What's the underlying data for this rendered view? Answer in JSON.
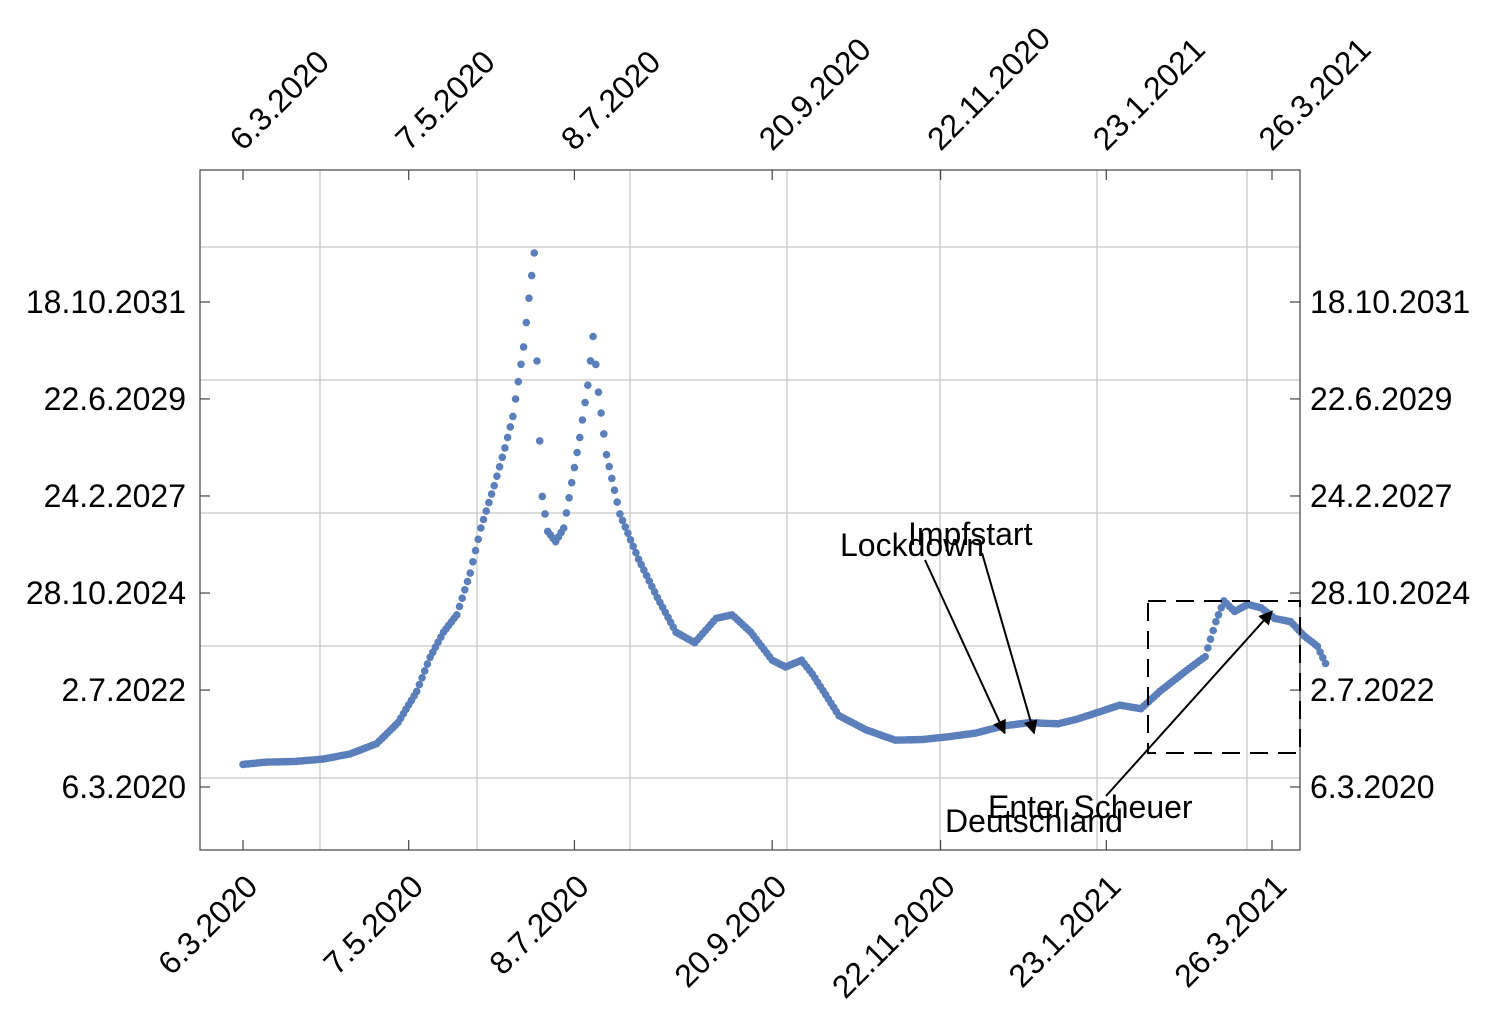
{
  "chart_data": {
    "type": "scatter",
    "title": "",
    "xlabel": "",
    "ylabel": "",
    "x_ticks": [
      "6.3.2020",
      "7.5.2020",
      "8.7.2020",
      "20.9.2020",
      "22.11.2020",
      "23.1.2021",
      "26.3.2021"
    ],
    "y_ticks": [
      "6.3.2020",
      "2.7.2022",
      "28.10.2024",
      "24.2.2027",
      "22.6.2029",
      "18.10.2031"
    ],
    "grid": true,
    "series": [
      {
        "color": "#5b7fbb",
        "points": [
          [
            "2020-03-06",
            "2020-09-20"
          ],
          [
            "2020-03-15",
            "2020-10-10"
          ],
          [
            "2020-03-25",
            "2020-10-15"
          ],
          [
            "2020-04-05",
            "2020-11-05"
          ],
          [
            "2020-04-15",
            "2020-12-20"
          ],
          [
            "2020-04-25",
            "2021-03-20"
          ],
          [
            "2020-05-03",
            "2021-09-20"
          ],
          [
            "2020-05-10",
            "2022-06-20"
          ],
          [
            "2020-05-15",
            "2023-04-15"
          ],
          [
            "2020-05-20",
            "2023-11-20"
          ],
          [
            "2020-05-25",
            "2024-04-20"
          ],
          [
            "2020-05-30",
            "2025-04-20"
          ],
          [
            "2020-06-03",
            "2026-05-20"
          ],
          [
            "2020-06-08",
            "2027-05-25"
          ],
          [
            "2020-06-12",
            "2028-04-20"
          ],
          [
            "2020-06-15",
            "2029-01-20"
          ],
          [
            "2020-06-17",
            "2029-11-20"
          ],
          [
            "2020-06-19",
            "2030-09-20"
          ],
          [
            "2020-06-21",
            "2031-11-20"
          ],
          [
            "2020-06-23",
            "2032-12-20"
          ],
          [
            "2020-06-24",
            "2030-05-20"
          ],
          [
            "2020-06-25",
            "2028-06-20"
          ],
          [
            "2020-06-26",
            "2027-02-20"
          ],
          [
            "2020-06-28",
            "2026-04-20"
          ],
          [
            "2020-07-01",
            "2026-01-20"
          ],
          [
            "2020-07-04",
            "2026-05-20"
          ],
          [
            "2020-07-07",
            "2027-06-20"
          ],
          [
            "2020-07-10",
            "2028-07-20"
          ],
          [
            "2020-07-13",
            "2029-10-20"
          ],
          [
            "2020-07-15",
            "2030-12-20"
          ],
          [
            "2020-07-17",
            "2029-08-20"
          ],
          [
            "2020-07-20",
            "2028-02-20"
          ],
          [
            "2020-07-25",
            "2026-09-20"
          ],
          [
            "2020-08-01",
            "2025-08-20"
          ],
          [
            "2020-08-08",
            "2024-09-20"
          ],
          [
            "2020-08-15",
            "2023-11-20"
          ],
          [
            "2020-08-22",
            "2023-08-20"
          ],
          [
            "2020-08-30",
            "2024-03-20"
          ],
          [
            "2020-09-05",
            "2024-04-20"
          ],
          [
            "2020-09-12",
            "2023-11-20"
          ],
          [
            "2020-09-20",
            "2023-03-20"
          ],
          [
            "2020-09-25",
            "2023-01-20"
          ],
          [
            "2020-10-01",
            "2023-03-20"
          ],
          [
            "2020-10-05",
            "2022-11-20"
          ],
          [
            "2020-10-15",
            "2021-11-20"
          ],
          [
            "2020-10-25",
            "2021-07-20"
          ],
          [
            "2020-11-05",
            "2021-04-20"
          ],
          [
            "2020-11-15",
            "2021-04-25"
          ],
          [
            "2020-11-25",
            "2021-05-20"
          ],
          [
            "2020-12-05",
            "2021-06-20"
          ],
          [
            "2020-12-15",
            "2021-08-20"
          ],
          [
            "2020-12-25",
            "2021-09-20"
          ],
          [
            "2021-01-05",
            "2021-09-10"
          ],
          [
            "2021-01-12",
            "2021-10-20"
          ],
          [
            "2021-01-20",
            "2021-12-20"
          ],
          [
            "2021-01-28",
            "2022-02-20"
          ],
          [
            "2021-02-05",
            "2022-01-20"
          ],
          [
            "2021-02-12",
            "2022-06-20"
          ],
          [
            "2021-02-22",
            "2022-12-20"
          ],
          [
            "2021-03-01",
            "2023-04-20"
          ],
          [
            "2021-03-05",
            "2024-02-20"
          ],
          [
            "2021-03-08",
            "2024-08-20"
          ],
          [
            "2021-03-12",
            "2024-05-20"
          ],
          [
            "2021-03-17",
            "2024-07-20"
          ],
          [
            "2021-03-22",
            "2024-06-20"
          ],
          [
            "2021-03-27",
            "2024-03-20"
          ],
          [
            "2021-04-02",
            "2024-02-20"
          ],
          [
            "2021-04-07",
            "2023-10-20"
          ],
          [
            "2021-04-12",
            "2023-07-20"
          ],
          [
            "2021-04-15",
            "2023-02-20"
          ]
        ]
      }
    ],
    "annotations": [
      {
        "text": "Lockdown",
        "target": [
          "2020-12-16",
          "2021-06-20"
        ]
      },
      {
        "text": "Impfstart",
        "target": [
          "2020-12-27",
          "2021-06-20"
        ]
      },
      {
        "text": "Enter Scheuer",
        "target": [
          "2021-03-26",
          "2024-05-20"
        ]
      },
      {
        "text": "Deutschland",
        "target": [
          "2021-03-26",
          "2024-05-20"
        ]
      }
    ]
  }
}
